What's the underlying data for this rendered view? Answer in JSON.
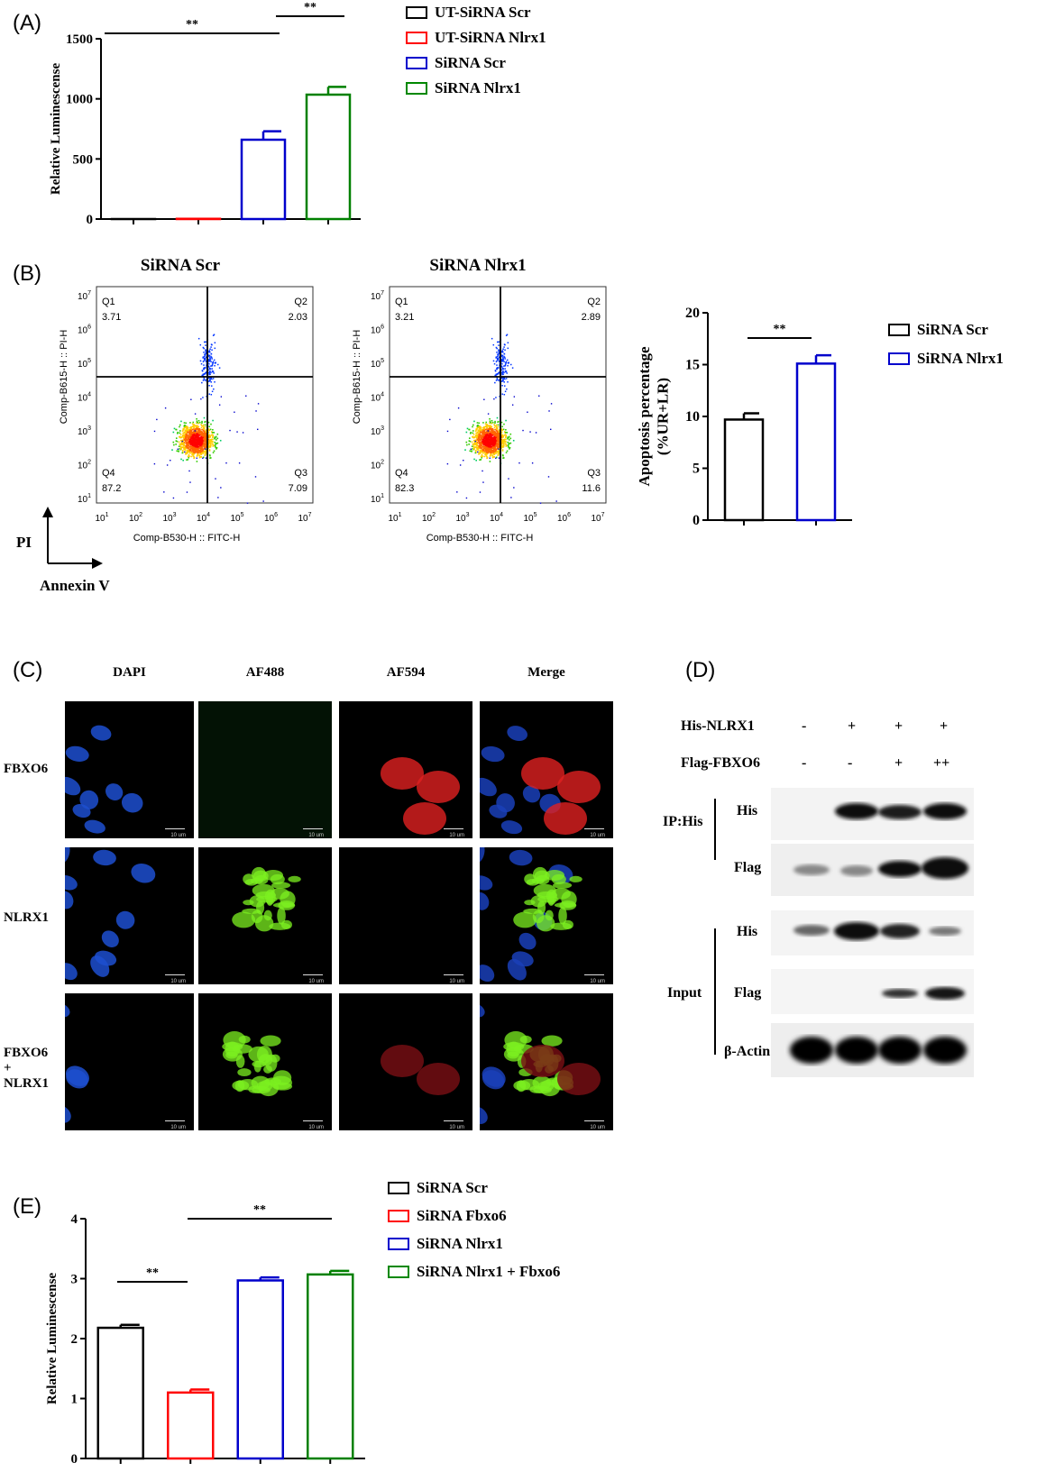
{
  "panels": {
    "A": {
      "label": "(A)",
      "legend": [
        {
          "text": "UT-SiRNA Scr",
          "color": "#000000"
        },
        {
          "text": "UT-SiRNA Nlrx1",
          "color": "#ff0000"
        },
        {
          "text": "SiRNA Scr",
          "color": "#0000cc"
        },
        {
          "text": "SiRNA Nlrx1",
          "color": "#008000"
        }
      ]
    },
    "B": {
      "label": "(B)",
      "flow": [
        {
          "title": "SiRNA Scr",
          "q1": "3.71",
          "q2": "2.03",
          "q3": "7.09",
          "q4": "87.2"
        },
        {
          "title": "SiRNA Nlrx1",
          "q1": "3.21",
          "q2": "2.89",
          "q3": "11.6",
          "q4": "82.3"
        }
      ],
      "quadrant_names": {
        "q1": "Q1",
        "q2": "Q2",
        "q3": "Q3",
        "q4": "Q4"
      },
      "flow_xlabel": "Comp-B530-H :: FITC-H",
      "flow_ylabel": "Comp-B615-H :: PI-H",
      "axis_pi": "PI",
      "axis_annexin": "Annexin V",
      "legend": [
        {
          "text": "SiRNA Scr",
          "color": "#000000"
        },
        {
          "text": "SiRNA Nlrx1",
          "color": "#0000cc"
        }
      ]
    },
    "C": {
      "label": "(C)",
      "columns": [
        "DAPI",
        "AF488",
        "AF594",
        "Merge"
      ],
      "rows": [
        "FBXO6",
        "NLRX1",
        "FBXO6 + NLRX1"
      ],
      "scale_text": "10 um"
    },
    "D": {
      "label": "(D)",
      "conditions": [
        {
          "name": "His-NLRX1",
          "values": [
            "-",
            "+",
            "+",
            "+"
          ]
        },
        {
          "name": "Flag-FBXO6",
          "values": [
            "-",
            "-",
            "+",
            "++"
          ]
        }
      ],
      "group_ip": "IP:His",
      "group_input": "Input",
      "blots": [
        "His",
        "Flag",
        "His",
        "Flag",
        "β-Actin"
      ]
    },
    "E": {
      "label": "(E)",
      "legend": [
        {
          "text": "SiRNA Scr",
          "color": "#000000"
        },
        {
          "text": "SiRNA Fbxo6",
          "color": "#ff0000"
        },
        {
          "text": "SiRNA Nlrx1",
          "color": "#0000cc"
        },
        {
          "text": "SiRNA Nlrx1 + Fbxo6",
          "color": "#008000"
        }
      ]
    }
  },
  "chart_data": [
    {
      "panel": "A",
      "type": "bar",
      "categories": [
        "UT-SiRNA Scr",
        "UT-SiRNA Nlrx1",
        "SiRNA Scr",
        "SiRNA Nlrx1"
      ],
      "values": [
        0,
        2,
        660,
        1035
      ],
      "errors": [
        0,
        0,
        70,
        65
      ],
      "colors": [
        "#000000",
        "#ff0000",
        "#0000cc",
        "#008000"
      ],
      "ylabel": "Relative Luminescense",
      "ylim": [
        0,
        1500
      ],
      "yticks": [
        0,
        500,
        1000,
        1500
      ],
      "significance": [
        {
          "from": 0,
          "to": 2,
          "label": "**"
        },
        {
          "from": 2,
          "to": 3,
          "label": "**"
        }
      ]
    },
    {
      "panel": "B",
      "type": "bar",
      "categories": [
        "SiRNA Scr",
        "SiRNA Nlrx1"
      ],
      "values": [
        9.7,
        15.1
      ],
      "errors": [
        0.6,
        0.8
      ],
      "colors": [
        "#000000",
        "#0000cc"
      ],
      "ylabel": "Apoptosis percentage (%UR+LR)",
      "ylim": [
        0,
        20
      ],
      "yticks": [
        0,
        5,
        10,
        15,
        20
      ],
      "significance": [
        {
          "from": 0,
          "to": 1,
          "label": "**"
        }
      ]
    },
    {
      "panel": "E",
      "type": "bar",
      "categories": [
        "SiRNA Scr",
        "SiRNA Fbxo6",
        "SiRNA Nlrx1",
        "SiRNA Nlrx1 + Fbxo6"
      ],
      "values": [
        2.18,
        1.1,
        2.97,
        3.07
      ],
      "errors": [
        0.05,
        0.05,
        0.05,
        0.06
      ],
      "colors": [
        "#000000",
        "#ff0000",
        "#0000cc",
        "#008000"
      ],
      "ylabel": "Relative Luminescense",
      "ylim": [
        0,
        4
      ],
      "yticks": [
        0,
        1,
        2,
        3,
        4
      ],
      "significance": [
        {
          "from": 0,
          "to": 1,
          "label": "**"
        },
        {
          "from": 1,
          "to": 3,
          "label": "**"
        }
      ]
    }
  ]
}
